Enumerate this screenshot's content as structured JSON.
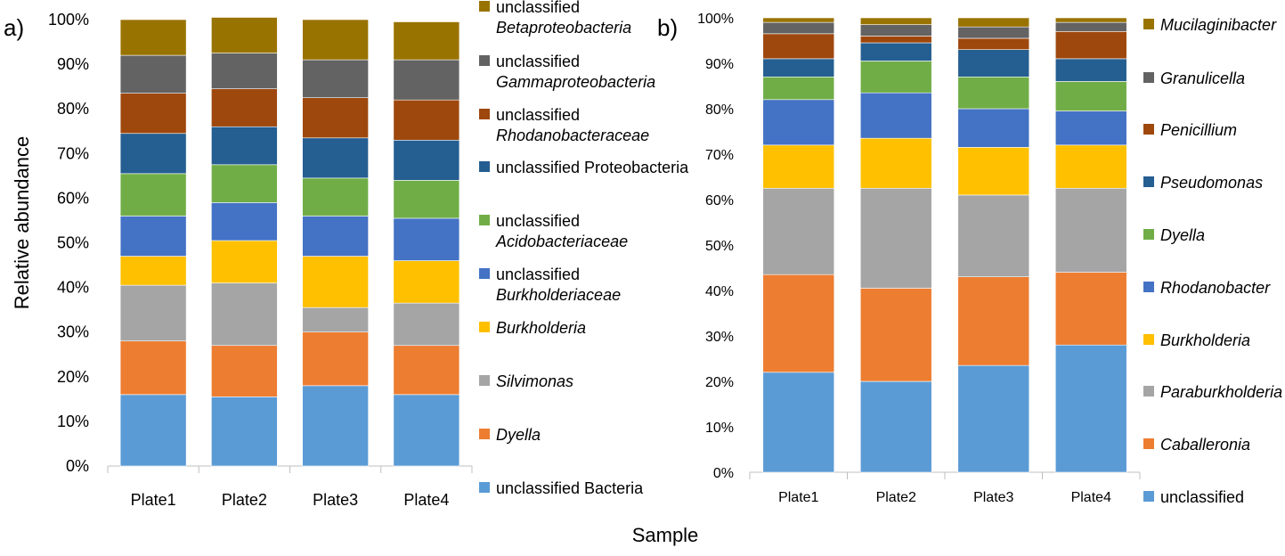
{
  "chart_data": [
    {
      "type": "bar",
      "stacked": true,
      "panel_label": "a)",
      "categories": [
        "Plate1",
        "Plate2",
        "Plate3",
        "Plate4"
      ],
      "ylabel": "Relative abundance",
      "xlabel": "Sample",
      "ylim": [
        0,
        100
      ],
      "yticks": [
        "0%",
        "10%",
        "20%",
        "30%",
        "40%",
        "50%",
        "60%",
        "70%",
        "80%",
        "90%",
        "100%"
      ],
      "legend_position": "right",
      "series": [
        {
          "name": "unclassified Bacteria",
          "legend": [
            "unclassified Bacteria"
          ],
          "italic": [
            false
          ],
          "color": "#5b9bd5",
          "values": [
            16,
            15.5,
            18,
            16
          ]
        },
        {
          "name": "Dyella",
          "legend": [
            "Dyella"
          ],
          "italic": [
            true
          ],
          "color": "#ed7d31",
          "values": [
            12,
            11.5,
            12,
            11
          ]
        },
        {
          "name": "Silvimonas",
          "legend": [
            "Silvimonas"
          ],
          "italic": [
            true
          ],
          "color": "#a5a5a5",
          "values": [
            12.5,
            14,
            5.5,
            9.5
          ]
        },
        {
          "name": "Burkholderia",
          "legend": [
            "Burkholderia"
          ],
          "italic": [
            true
          ],
          "color": "#ffc000",
          "values": [
            6.5,
            9.5,
            11.5,
            9.5
          ]
        },
        {
          "name": "unclassified Burkholderiaceae",
          "legend": [
            "unclassified",
            "Burkholderiaceae"
          ],
          "italic": [
            false,
            true
          ],
          "color": "#4472c4",
          "values": [
            9,
            8.5,
            9,
            9.5
          ]
        },
        {
          "name": "unclassified Acidobacteriaceae",
          "legend": [
            "unclassified",
            "Acidobacteriaceae"
          ],
          "italic": [
            false,
            true
          ],
          "color": "#70ad47",
          "values": [
            9.5,
            8.5,
            8.5,
            8.5
          ]
        },
        {
          "name": "unclassified Proteobacteria",
          "legend": [
            "unclassified Proteobacteria"
          ],
          "italic": [
            false
          ],
          "color": "#255e91",
          "values": [
            9,
            8.5,
            9,
            9
          ]
        },
        {
          "name": "unclassified Rhodanobacteraceae",
          "legend": [
            "unclassified",
            "Rhodanobacteraceae"
          ],
          "italic": [
            false,
            true
          ],
          "color": "#9e480e",
          "values": [
            9,
            8.5,
            9,
            9
          ]
        },
        {
          "name": "unclassified Gammaproteobacteria",
          "legend": [
            "unclassified",
            "Gammaproteobacteria"
          ],
          "italic": [
            false,
            true
          ],
          "color": "#636363",
          "values": [
            8.5,
            8,
            8.5,
            9
          ]
        },
        {
          "name": "unclassified Betaproteobacteria",
          "legend": [
            "unclassified",
            "Betaproteobacteria"
          ],
          "italic": [
            false,
            true
          ],
          "color": "#997300",
          "values": [
            8,
            8,
            9,
            8.5
          ]
        }
      ]
    },
    {
      "type": "bar",
      "stacked": true,
      "panel_label": "b)",
      "categories": [
        "Plate1",
        "Plate2",
        "Plate3",
        "Plate4"
      ],
      "ylim": [
        0,
        100
      ],
      "yticks": [
        "0%",
        "10%",
        "20%",
        "30%",
        "40%",
        "50%",
        "60%",
        "70%",
        "80%",
        "90%",
        "100%"
      ],
      "legend_position": "right",
      "series": [
        {
          "name": "unclassified",
          "legend": [
            "unclassified"
          ],
          "italic": [
            false
          ],
          "color": "#5b9bd5",
          "values": [
            22,
            20,
            23.5,
            28
          ]
        },
        {
          "name": "Caballeronia",
          "legend": [
            "Caballeronia"
          ],
          "italic": [
            true
          ],
          "color": "#ed7d31",
          "values": [
            21.5,
            20.5,
            19.5,
            16
          ]
        },
        {
          "name": "Paraburkholderia",
          "legend": [
            "Paraburkholderia"
          ],
          "italic": [
            true
          ],
          "color": "#a5a5a5",
          "values": [
            19,
            22,
            18,
            18.5
          ]
        },
        {
          "name": "Burkholderia",
          "legend": [
            "Burkholderia"
          ],
          "italic": [
            true
          ],
          "color": "#ffc000",
          "values": [
            9.5,
            11,
            10.5,
            9.5
          ]
        },
        {
          "name": "Rhodanobacter",
          "legend": [
            "Rhodanobacter"
          ],
          "italic": [
            true
          ],
          "color": "#4472c4",
          "values": [
            10,
            10,
            8.5,
            7.5
          ]
        },
        {
          "name": "Dyella",
          "legend": [
            "Dyella"
          ],
          "italic": [
            true
          ],
          "color": "#70ad47",
          "values": [
            5,
            7,
            7,
            6.5
          ]
        },
        {
          "name": "Pseudomonas",
          "legend": [
            "Pseudomonas"
          ],
          "italic": [
            true
          ],
          "color": "#255e91",
          "values": [
            4,
            4,
            6,
            5
          ]
        },
        {
          "name": "Penicillium",
          "legend": [
            "Penicillium"
          ],
          "italic": [
            true
          ],
          "color": "#9e480e",
          "values": [
            5.5,
            1.5,
            2.5,
            6
          ]
        },
        {
          "name": "Granulicella",
          "legend": [
            "Granulicella"
          ],
          "italic": [
            true
          ],
          "color": "#636363",
          "values": [
            2.5,
            2.5,
            2.5,
            2
          ]
        },
        {
          "name": "Mucilaginibacter",
          "legend": [
            "Mucilaginibacter"
          ],
          "italic": [
            true
          ],
          "color": "#997300",
          "values": [
            1,
            1.5,
            2,
            1
          ]
        }
      ]
    }
  ]
}
